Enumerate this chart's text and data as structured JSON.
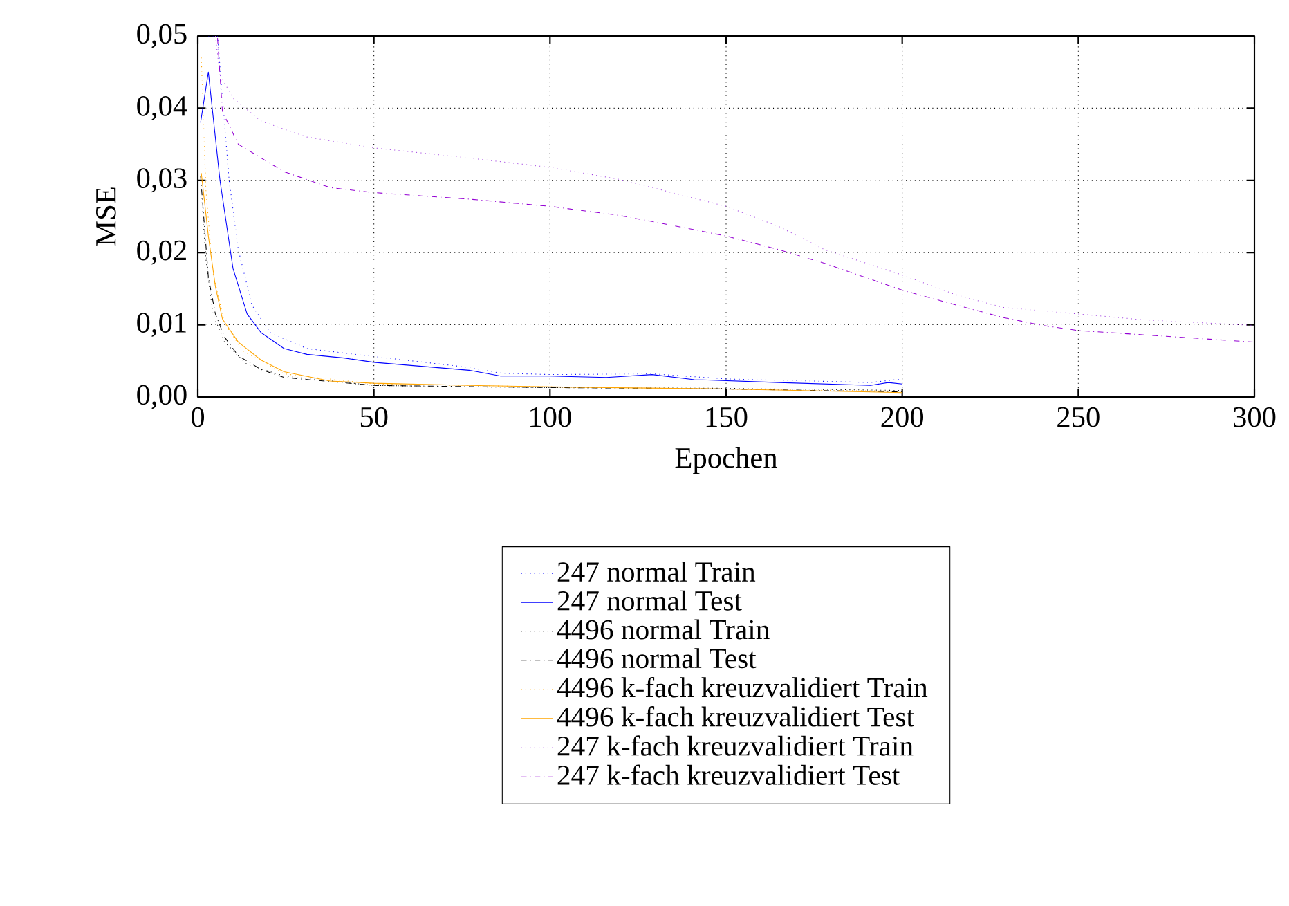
{
  "chart_data": {
    "type": "line",
    "xlabel": "Epochen",
    "ylabel": "MSE",
    "xlim": [
      0,
      300
    ],
    "ylim": [
      0,
      0.05
    ],
    "xticks": [
      0,
      50,
      100,
      150,
      200,
      250,
      300
    ],
    "yticks": [
      {
        "value": 0,
        "label": "0,00"
      },
      {
        "value": 0.01,
        "label": "0,01"
      },
      {
        "value": 0.02,
        "label": "0,02"
      },
      {
        "value": 0.03,
        "label": "0,03"
      },
      {
        "value": 0.04,
        "label": "0,04"
      },
      {
        "value": 0.05,
        "label": "0,05"
      }
    ],
    "grid": true,
    "legend": "bottom",
    "series": [
      {
        "name": "247 normal Train",
        "color": "#0000ff",
        "line_style": "dotted",
        "x": [
          3,
          5.6,
          8.9,
          11.5,
          15.4,
          20.6,
          31,
          50,
          77,
          86,
          100,
          129,
          150,
          191,
          200
        ],
        "values": [
          0.05,
          0.05,
          0.03,
          0.0204,
          0.0127,
          0.0089,
          0.0067,
          0.0056,
          0.0041,
          0.0033,
          0.0031,
          0.0032,
          0.0025,
          0.002,
          0.0025
        ]
      },
      {
        "name": "247 normal Test",
        "color": "#0000ff",
        "line_style": "solid",
        "x": [
          0.8,
          3,
          6.3,
          10,
          14,
          18,
          24.5,
          31,
          41.5,
          50,
          77,
          86,
          100,
          116,
          129,
          141,
          165,
          191,
          196,
          200
        ],
        "values": [
          0.038,
          0.045,
          0.03,
          0.0178,
          0.0115,
          0.0089,
          0.0067,
          0.0059,
          0.0054,
          0.0048,
          0.0037,
          0.0029,
          0.0029,
          0.0027,
          0.0031,
          0.0024,
          0.002,
          0.0016,
          0.002,
          0.0018
        ]
      },
      {
        "name": "4496 normal Train",
        "color": "#000000",
        "line_style": "dotted",
        "x": [
          0.8,
          2.3,
          4.3,
          7.6,
          14,
          24.5,
          50,
          77,
          100,
          150,
          200
        ],
        "values": [
          0.03,
          0.0191,
          0.0115,
          0.0076,
          0.0045,
          0.0029,
          0.0016,
          0.0014,
          0.0013,
          0.0012,
          0.0009
        ]
      },
      {
        "name": "4496 normal Test",
        "color": "#000000",
        "line_style": "dashdot",
        "x": [
          0.8,
          3,
          5,
          7.6,
          11.5,
          18,
          24.5,
          50,
          100,
          130,
          150,
          200
        ],
        "values": [
          0.0306,
          0.0166,
          0.0115,
          0.0083,
          0.0057,
          0.0038,
          0.0027,
          0.0016,
          0.0013,
          0.0012,
          0.0011,
          0.0007
        ]
      },
      {
        "name": "4496 k-fach kreuzvalidiert Train",
        "color": "#ffa500",
        "line_style": "dotted",
        "x": [
          1,
          2.3,
          4.3,
          7.6,
          12.8,
          24.5,
          50,
          100,
          150,
          200
        ],
        "values": [
          0.047,
          0.0287,
          0.0172,
          0.0102,
          0.0064,
          0.0032,
          0.0018,
          0.0014,
          0.0011,
          0.0008
        ]
      },
      {
        "name": "4496 k-fach kreuzvalidiert Test",
        "color": "#ffa500",
        "line_style": "solid",
        "x": [
          1,
          3,
          5,
          7,
          11.5,
          18,
          24.5,
          37.6,
          50,
          77,
          100,
          150,
          200
        ],
        "values": [
          0.031,
          0.0223,
          0.0153,
          0.0108,
          0.0076,
          0.0051,
          0.0035,
          0.0022,
          0.0019,
          0.0016,
          0.0014,
          0.0011,
          0.0006
        ]
      },
      {
        "name": "247 k-fach kreuzvalidiert Train",
        "color": "#a040e0",
        "line_style": "dotted",
        "x": [
          5,
          6.3,
          10,
          18,
          31,
          50,
          77,
          100,
          119,
          129,
          150,
          165,
          178,
          200,
          215.6,
          228.7,
          250,
          268,
          300
        ],
        "values": [
          0.05,
          0.0446,
          0.0414,
          0.0382,
          0.036,
          0.0345,
          0.0331,
          0.0318,
          0.0302,
          0.029,
          0.0264,
          0.0236,
          0.0204,
          0.0169,
          0.0141,
          0.0124,
          0.0115,
          0.0107,
          0.0099
        ]
      },
      {
        "name": "247 k-fach kreuzvalidiert Test",
        "color": "#9400d3",
        "line_style": "dashdot",
        "x": [
          5.6,
          7,
          11.5,
          24.5,
          37.6,
          50,
          77,
          100,
          119,
          129,
          150,
          165,
          178,
          200,
          215.6,
          228.7,
          240,
          250,
          275,
          300
        ],
        "values": [
          0.0497,
          0.0395,
          0.035,
          0.0312,
          0.029,
          0.0283,
          0.0274,
          0.0264,
          0.0252,
          0.0243,
          0.0223,
          0.0204,
          0.0185,
          0.0148,
          0.0127,
          0.011,
          0.0099,
          0.0092,
          0.0084,
          0.0076
        ]
      }
    ]
  }
}
